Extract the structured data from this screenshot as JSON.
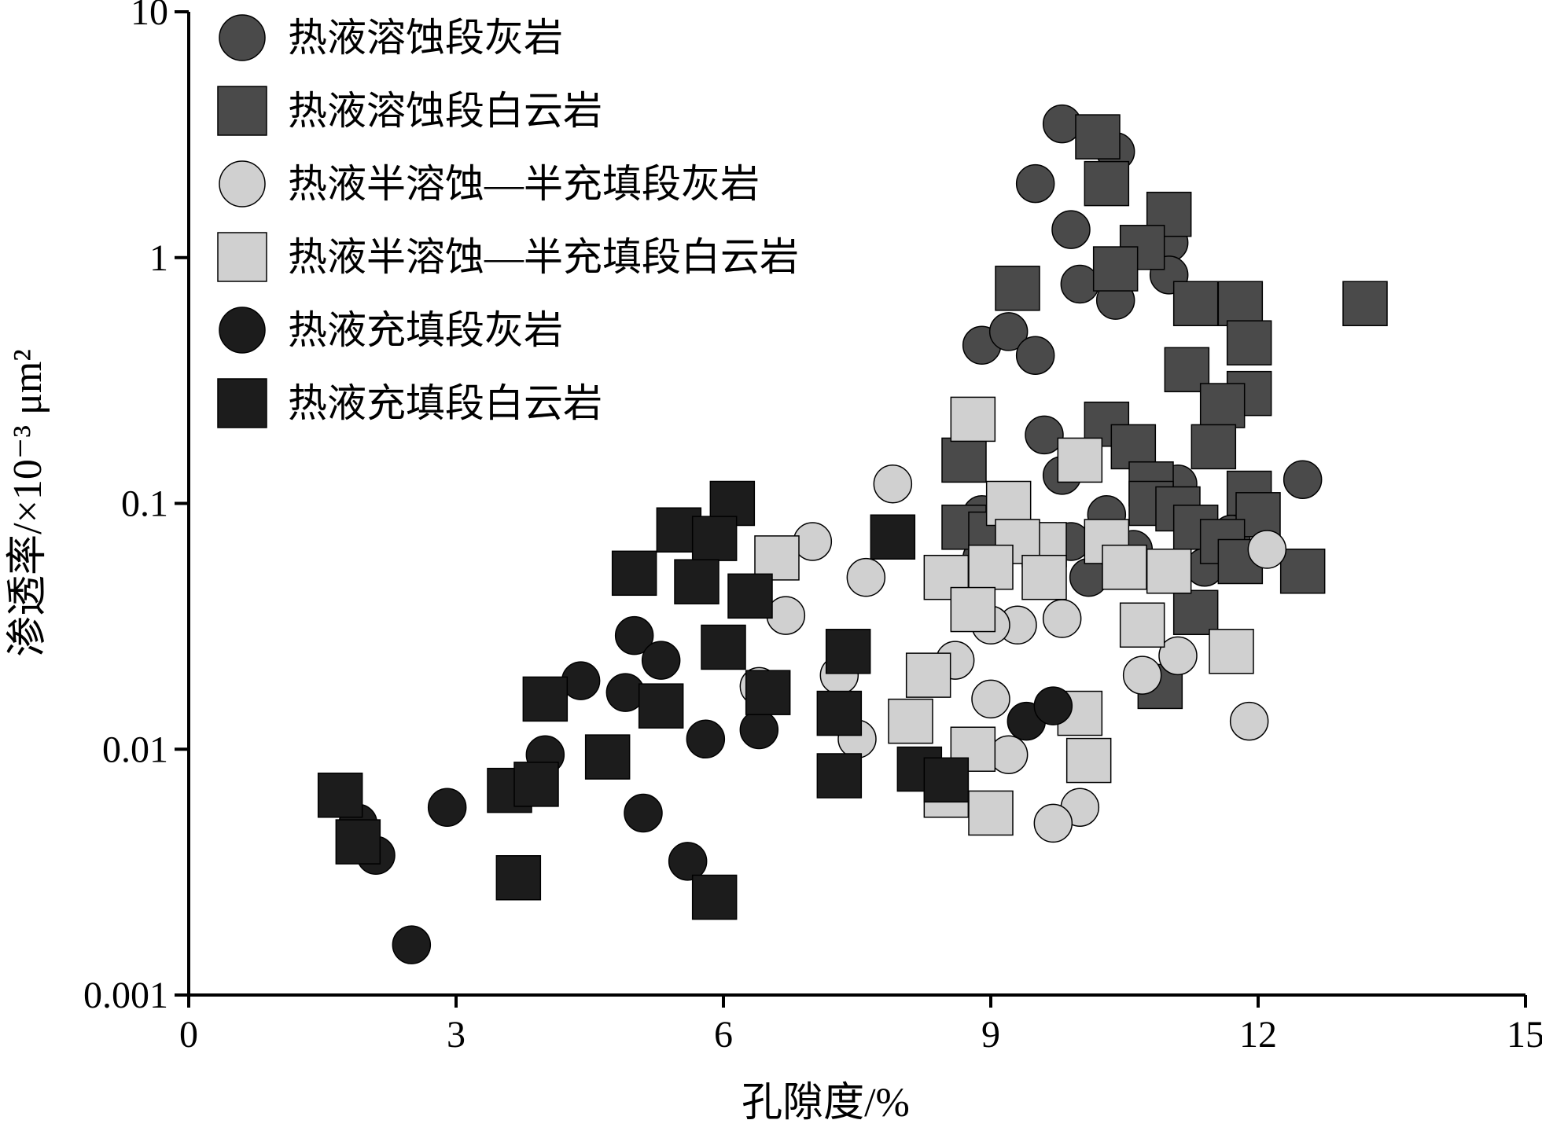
{
  "chart_data": {
    "type": "scatter",
    "xlabel": "孔隙度/%",
    "ylabel": "渗透率/×10⁻³ μm²",
    "xlim": [
      0,
      15
    ],
    "ylim": [
      0.001,
      10
    ],
    "yscale": "log",
    "x_ticks": [
      0,
      3,
      6,
      9,
      12,
      15
    ],
    "x_tick_labels": [
      "0",
      "3",
      "6",
      "9",
      "12",
      "15"
    ],
    "y_ticks": [
      0.001,
      0.01,
      0.1,
      1,
      10
    ],
    "y_tick_labels": [
      "0.001",
      "0.01",
      "0.1",
      "1",
      "10"
    ],
    "legend_position": "top-left",
    "grid": false,
    "series": [
      {
        "name": "热液溶蚀段灰岩",
        "marker": "circle",
        "color": "#4a4a4a",
        "points": [
          [
            9.8,
            3.5
          ],
          [
            10.4,
            2.7
          ],
          [
            9.5,
            2.0
          ],
          [
            9.9,
            1.3
          ],
          [
            11.0,
            1.15
          ],
          [
            11.0,
            0.85
          ],
          [
            10.0,
            0.78
          ],
          [
            10.4,
            0.67
          ],
          [
            8.9,
            0.44
          ],
          [
            9.2,
            0.5
          ],
          [
            9.5,
            0.4
          ],
          [
            9.6,
            0.19
          ],
          [
            9.8,
            0.13
          ],
          [
            11.1,
            0.12
          ],
          [
            12.5,
            0.125
          ],
          [
            8.9,
            0.09
          ],
          [
            10.3,
            0.09
          ],
          [
            11.7,
            0.075
          ],
          [
            9.9,
            0.07
          ],
          [
            10.6,
            0.065
          ],
          [
            10.1,
            0.05
          ],
          [
            11.4,
            0.055
          ],
          [
            8.9,
            0.06
          ]
        ]
      },
      {
        "name": "热液溶蚀段白云岩",
        "marker": "square",
        "color": "#4a4a4a",
        "points": [
          [
            10.2,
            3.1
          ],
          [
            10.3,
            2.0
          ],
          [
            11.0,
            1.5
          ],
          [
            10.7,
            1.1
          ],
          [
            10.4,
            0.9
          ],
          [
            9.3,
            0.75
          ],
          [
            11.3,
            0.65
          ],
          [
            11.8,
            0.65
          ],
          [
            13.2,
            0.65
          ],
          [
            11.9,
            0.45
          ],
          [
            11.2,
            0.35
          ],
          [
            11.9,
            0.28
          ],
          [
            11.6,
            0.25
          ],
          [
            10.3,
            0.21
          ],
          [
            10.6,
            0.17
          ],
          [
            11.5,
            0.17
          ],
          [
            8.7,
            0.15
          ],
          [
            10.8,
            0.12
          ],
          [
            11.9,
            0.11
          ],
          [
            10.8,
            0.1
          ],
          [
            11.1,
            0.095
          ],
          [
            12.0,
            0.09
          ],
          [
            11.3,
            0.08
          ],
          [
            8.7,
            0.08
          ],
          [
            9.0,
            0.075
          ],
          [
            12.5,
            0.053
          ],
          [
            11.6,
            0.07
          ],
          [
            11.8,
            0.058
          ],
          [
            11.3,
            0.036
          ],
          [
            10.9,
            0.018
          ]
        ]
      },
      {
        "name": "热液半溶蚀—半充填段灰岩",
        "marker": "circle",
        "color": "#d0d0d0",
        "points": [
          [
            7.9,
            0.12
          ],
          [
            7.0,
            0.07
          ],
          [
            12.1,
            0.065
          ],
          [
            7.6,
            0.05
          ],
          [
            6.7,
            0.035
          ],
          [
            9.3,
            0.032
          ],
          [
            9.0,
            0.032
          ],
          [
            9.8,
            0.034
          ],
          [
            8.6,
            0.023
          ],
          [
            11.1,
            0.024
          ],
          [
            10.7,
            0.02
          ],
          [
            6.4,
            0.018
          ],
          [
            7.3,
            0.02
          ],
          [
            9.0,
            0.016
          ],
          [
            11.9,
            0.013
          ],
          [
            7.5,
            0.011
          ],
          [
            9.2,
            0.0095
          ],
          [
            10.0,
            0.0058
          ],
          [
            9.7,
            0.005
          ]
        ]
      },
      {
        "name": "热液半溶蚀—半充填段白云岩",
        "marker": "square",
        "color": "#d0d0d0",
        "points": [
          [
            8.8,
            0.22
          ],
          [
            10.0,
            0.15
          ],
          [
            9.2,
            0.1
          ],
          [
            9.6,
            0.068
          ],
          [
            9.3,
            0.07
          ],
          [
            10.3,
            0.07
          ],
          [
            6.6,
            0.06
          ],
          [
            10.5,
            0.055
          ],
          [
            11.0,
            0.053
          ],
          [
            8.5,
            0.05
          ],
          [
            9.0,
            0.055
          ],
          [
            9.6,
            0.05
          ],
          [
            8.8,
            0.037
          ],
          [
            10.7,
            0.032
          ],
          [
            11.7,
            0.025
          ],
          [
            8.3,
            0.02
          ],
          [
            8.1,
            0.013
          ],
          [
            8.8,
            0.01
          ],
          [
            10.0,
            0.014
          ],
          [
            10.1,
            0.009
          ],
          [
            8.5,
            0.0065
          ],
          [
            9.0,
            0.0055
          ]
        ]
      },
      {
        "name": "热液充填段灰岩",
        "marker": "circle",
        "color": "#1c1c1c",
        "points": [
          [
            5.0,
            0.029
          ],
          [
            5.3,
            0.023
          ],
          [
            4.4,
            0.019
          ],
          [
            4.9,
            0.017
          ],
          [
            4.0,
            0.0095
          ],
          [
            5.8,
            0.011
          ],
          [
            6.4,
            0.012
          ],
          [
            9.4,
            0.013
          ],
          [
            9.7,
            0.015
          ],
          [
            2.9,
            0.0058
          ],
          [
            5.1,
            0.0055
          ],
          [
            1.9,
            0.005
          ],
          [
            2.1,
            0.0037
          ],
          [
            5.6,
            0.0035
          ],
          [
            2.5,
            0.0016
          ]
        ]
      },
      {
        "name": "热液充填段白云岩",
        "marker": "square",
        "color": "#1c1c1c",
        "points": [
          [
            6.1,
            0.1
          ],
          [
            5.5,
            0.078
          ],
          [
            5.9,
            0.072
          ],
          [
            5.0,
            0.052
          ],
          [
            5.7,
            0.048
          ],
          [
            6.3,
            0.042
          ],
          [
            7.9,
            0.073
          ],
          [
            6.0,
            0.026
          ],
          [
            7.4,
            0.025
          ],
          [
            6.5,
            0.017
          ],
          [
            7.3,
            0.014
          ],
          [
            4.0,
            0.016
          ],
          [
            5.3,
            0.015
          ],
          [
            4.7,
            0.0093
          ],
          [
            7.3,
            0.0078
          ],
          [
            8.2,
            0.0083
          ],
          [
            3.6,
            0.0068
          ],
          [
            3.9,
            0.0072
          ],
          [
            1.7,
            0.0065
          ],
          [
            1.9,
            0.0042
          ],
          [
            3.7,
            0.003
          ],
          [
            5.9,
            0.0025
          ],
          [
            8.5,
            0.0075
          ]
        ]
      }
    ]
  }
}
